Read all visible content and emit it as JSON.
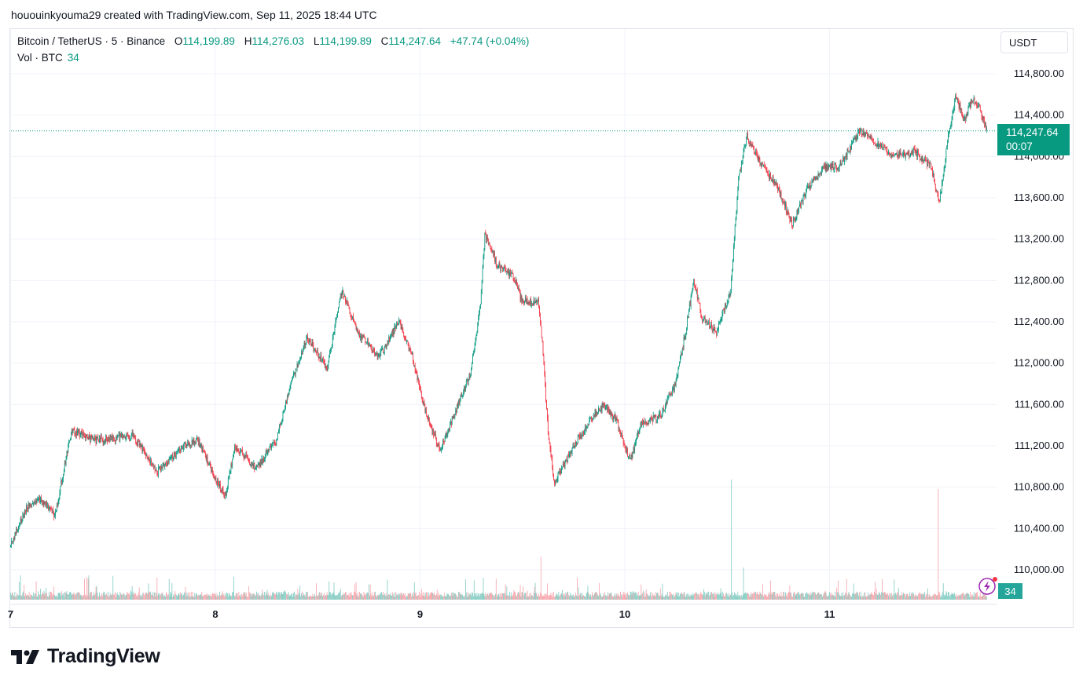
{
  "header": {
    "attribution": "hououinkyouma29 created with TradingView.com, Sep 11, 2025 18:44 UTC"
  },
  "legend": {
    "symbol": "Bitcoin / TetherUS · 5 · Binance",
    "o_label": "O",
    "o_value": "114,199.89",
    "h_label": "H",
    "h_value": "114,276.03",
    "l_label": "L",
    "l_value": "114,199.89",
    "c_label": "C",
    "c_value": "114,247.64",
    "change": "+47.74 (+0.04%)",
    "vol_label": "Vol · BTC",
    "vol_value": "34"
  },
  "currency_button": "USDT",
  "last_price": {
    "price": "114,247.64",
    "countdown": "00:07"
  },
  "volume_tag": "34",
  "logo_text": "TradingView",
  "colors": {
    "up": "#089981",
    "down": "#f23645",
    "vol_up": "#7fcac0",
    "vol_down": "#f7a1a8",
    "grid": "#f0f3fa"
  },
  "chart_data": {
    "type": "candlestick",
    "title": "Bitcoin / TetherUS · 5 · Binance",
    "interval": "5",
    "xlabel": "",
    "ylabel": "USDT",
    "ylim": [
      109800,
      115000
    ],
    "y_ticks": [
      "114,800.00",
      "114,400.00",
      "114,000.00",
      "113,600.00",
      "113,200.00",
      "112,800.00",
      "112,400.00",
      "112,000.00",
      "111,600.00",
      "111,200.00",
      "110,800.00",
      "110,400.00",
      "110,000.00"
    ],
    "y_tick_values": [
      114800,
      114400,
      114000,
      113600,
      113200,
      112800,
      112400,
      112000,
      111600,
      111200,
      110800,
      110400,
      110000
    ],
    "x_ticks": [
      "7",
      "8",
      "9",
      "10",
      "11"
    ],
    "x_tick_positions_days": [
      7,
      8,
      9,
      10,
      11
    ],
    "last_close": 114247.64,
    "price_path": [
      [
        7.0,
        110220
      ],
      [
        7.08,
        110600
      ],
      [
        7.15,
        110680
      ],
      [
        7.22,
        110520
      ],
      [
        7.3,
        111350
      ],
      [
        7.42,
        111250
      ],
      [
        7.6,
        111300
      ],
      [
        7.72,
        110950
      ],
      [
        7.85,
        111200
      ],
      [
        7.92,
        111250
      ],
      [
        8.0,
        110900
      ],
      [
        8.05,
        110700
      ],
      [
        8.1,
        111200
      ],
      [
        8.2,
        110980
      ],
      [
        8.3,
        111250
      ],
      [
        8.38,
        111850
      ],
      [
        8.45,
        112250
      ],
      [
        8.55,
        111950
      ],
      [
        8.62,
        112700
      ],
      [
        8.7,
        112300
      ],
      [
        8.8,
        112050
      ],
      [
        8.9,
        112400
      ],
      [
        8.96,
        112100
      ],
      [
        9.02,
        111600
      ],
      [
        9.1,
        111150
      ],
      [
        9.18,
        111550
      ],
      [
        9.25,
        111900
      ],
      [
        9.3,
        112600
      ],
      [
        9.32,
        113250
      ],
      [
        9.38,
        112950
      ],
      [
        9.46,
        112850
      ],
      [
        9.5,
        112600
      ],
      [
        9.58,
        112600
      ],
      [
        9.6,
        112200
      ],
      [
        9.63,
        111300
      ],
      [
        9.66,
        110850
      ],
      [
        9.74,
        111150
      ],
      [
        9.82,
        111400
      ],
      [
        9.9,
        111600
      ],
      [
        9.96,
        111450
      ],
      [
        10.03,
        111050
      ],
      [
        10.08,
        111400
      ],
      [
        10.18,
        111500
      ],
      [
        10.25,
        111800
      ],
      [
        10.3,
        112300
      ],
      [
        10.34,
        112800
      ],
      [
        10.38,
        112450
      ],
      [
        10.45,
        112300
      ],
      [
        10.52,
        112700
      ],
      [
        10.56,
        113800
      ],
      [
        10.6,
        114200
      ],
      [
        10.66,
        113950
      ],
      [
        10.75,
        113700
      ],
      [
        10.82,
        113350
      ],
      [
        10.9,
        113700
      ],
      [
        10.98,
        113900
      ],
      [
        11.05,
        113900
      ],
      [
        11.15,
        114250
      ],
      [
        11.22,
        114150
      ],
      [
        11.32,
        114000
      ],
      [
        11.42,
        114050
      ],
      [
        11.5,
        113900
      ],
      [
        11.54,
        113550
      ],
      [
        11.58,
        114150
      ],
      [
        11.62,
        114600
      ],
      [
        11.66,
        114350
      ],
      [
        11.7,
        114550
      ],
      [
        11.74,
        114450
      ],
      [
        11.77,
        114260
      ]
    ],
    "volume_spikes": [
      [
        10.52,
        1340
      ],
      [
        11.53,
        1235
      ],
      [
        9.59,
        480
      ],
      [
        10.58,
        360
      ]
    ],
    "volume_range": [
      0,
      1400
    ]
  }
}
